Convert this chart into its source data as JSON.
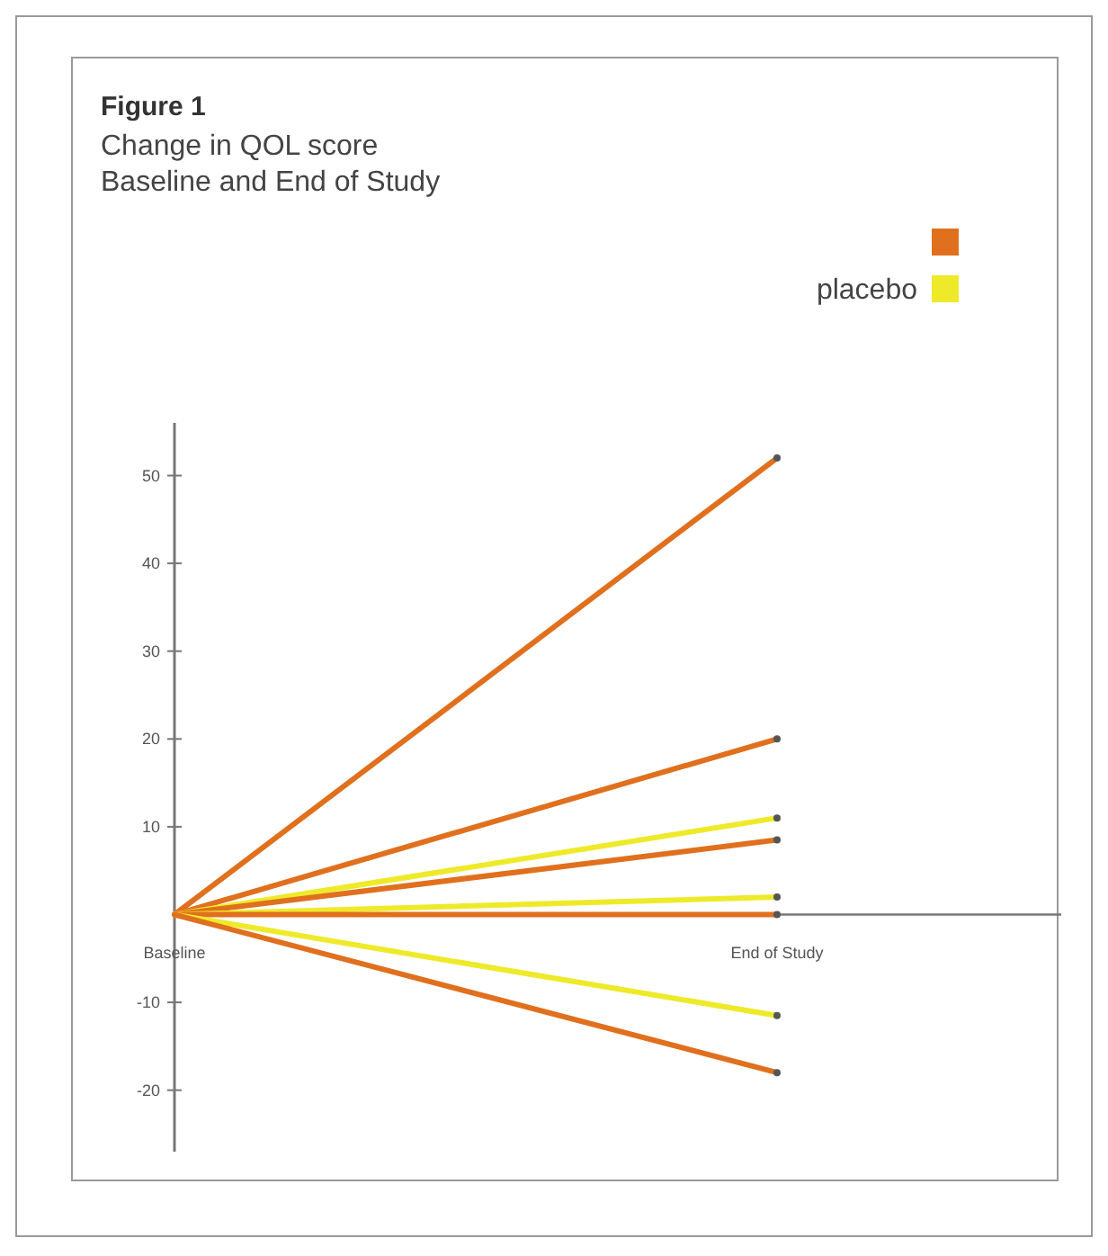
{
  "chart_data": {
    "type": "line",
    "title": "Figure 1",
    "subtitle": "Change in QOL score\nBaseline and End of Study",
    "categories": [
      "Baseline",
      "End of Study"
    ],
    "ylim": [
      -27,
      56
    ],
    "yticks": [
      -20,
      -10,
      10,
      20,
      30,
      40,
      50
    ],
    "legend": "top right",
    "marker": "circle",
    "line_style": "solid",
    "grid": false,
    "series": [
      {
        "color": "#e0701e",
        "values": [
          0,
          52
        ]
      },
      {
        "color": "#e0701e",
        "values": [
          0,
          20
        ]
      },
      {
        "name": "placebo",
        "color": "#eeea2a",
        "values": [
          0,
          11
        ]
      },
      {
        "color": "#e0701e",
        "values": [
          0,
          8.5
        ]
      },
      {
        "color": "#eeea2a",
        "values": [
          0,
          2
        ]
      },
      {
        "color": "#e0701e",
        "values": [
          0,
          0
        ]
      },
      {
        "color": "#eeea2a",
        "values": [
          0,
          -11.5
        ]
      },
      {
        "color": "#e0701e",
        "values": [
          0,
          -18
        ]
      }
    ]
  }
}
